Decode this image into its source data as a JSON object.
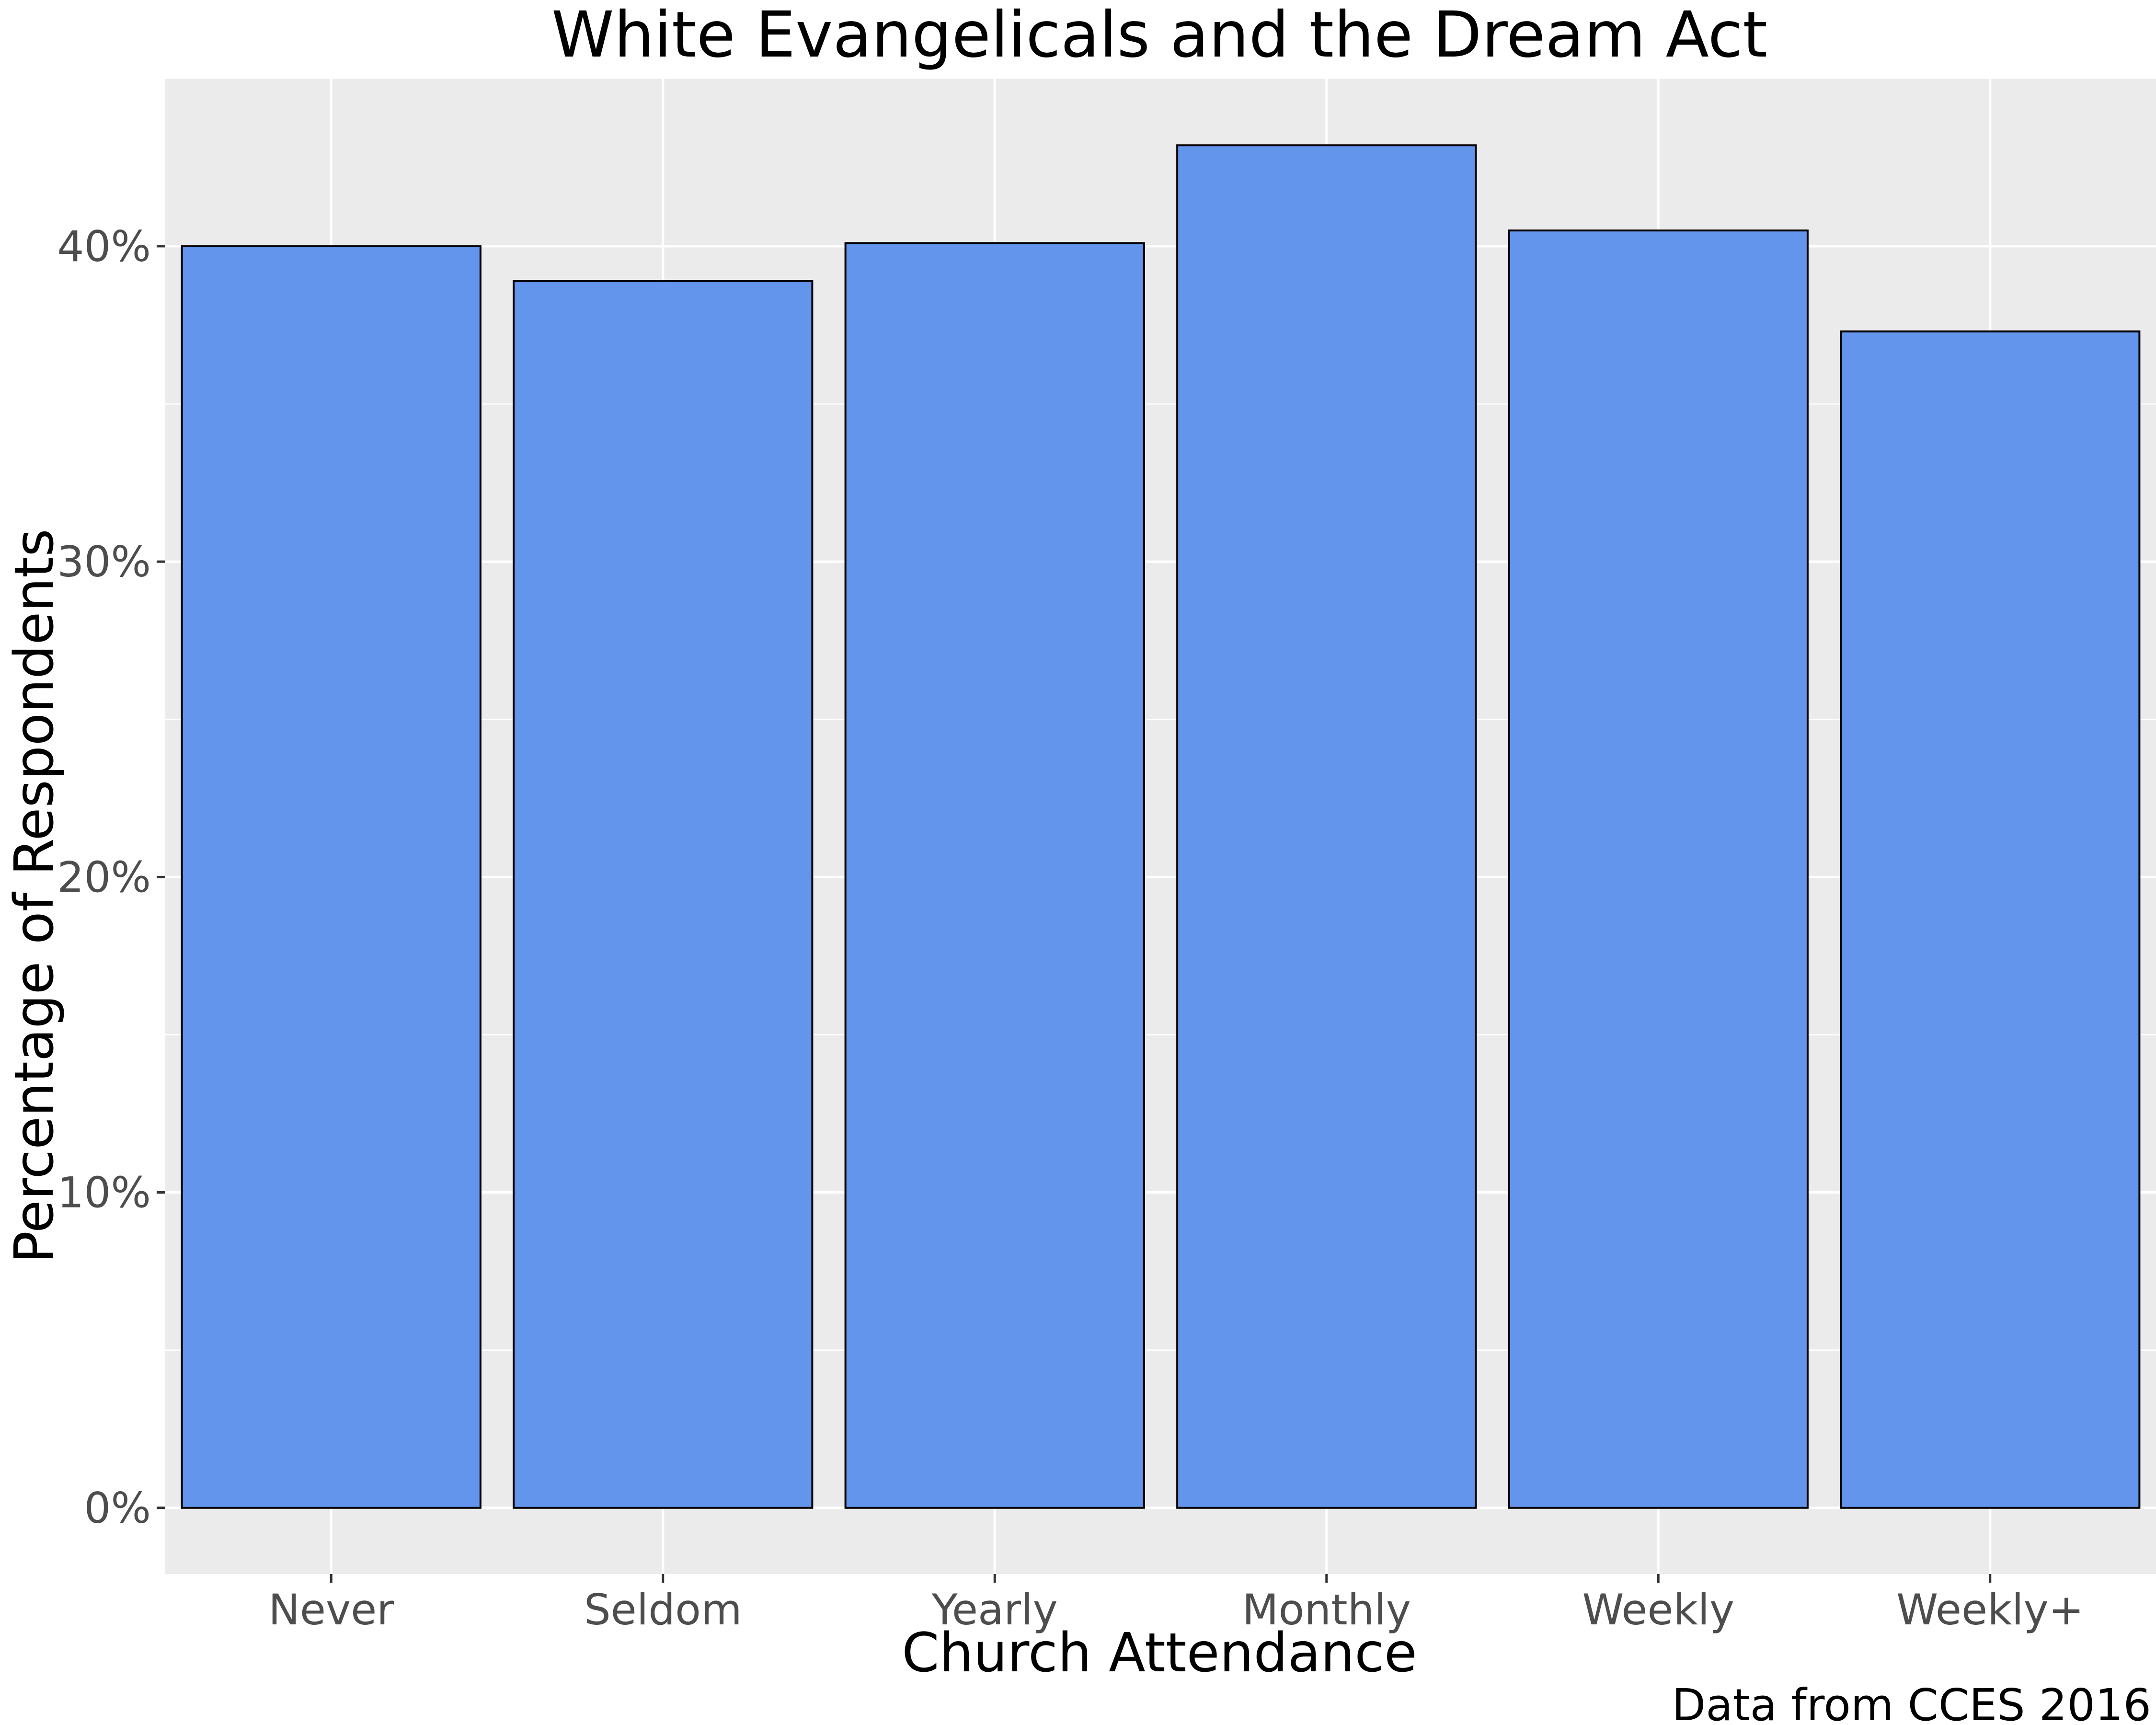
{
  "chart_data": {
    "type": "bar",
    "title": "White Evangelicals and the Dream Act",
    "xlabel": "Church Attendance",
    "ylabel": "Percentage of Respondents",
    "caption": "Data from CCES 2016",
    "categories": [
      "Never",
      "Seldom",
      "Yearly",
      "Monthly",
      "Weekly",
      "Weekly+"
    ],
    "values": [
      40.0,
      38.9,
      40.1,
      43.2,
      40.5,
      37.3
    ],
    "ylim": [
      -2.1,
      45.3
    ],
    "yticks": [
      0,
      10,
      20,
      30,
      40
    ],
    "ytick_labels": [
      "0%",
      "10%",
      "20%",
      "30%",
      "40%"
    ],
    "grid": true,
    "colors": {
      "bar_fill": "#6495ED",
      "bar_stroke": "#000000",
      "panel_background": "#EBEBEB",
      "grid": "#FFFFFF"
    }
  }
}
